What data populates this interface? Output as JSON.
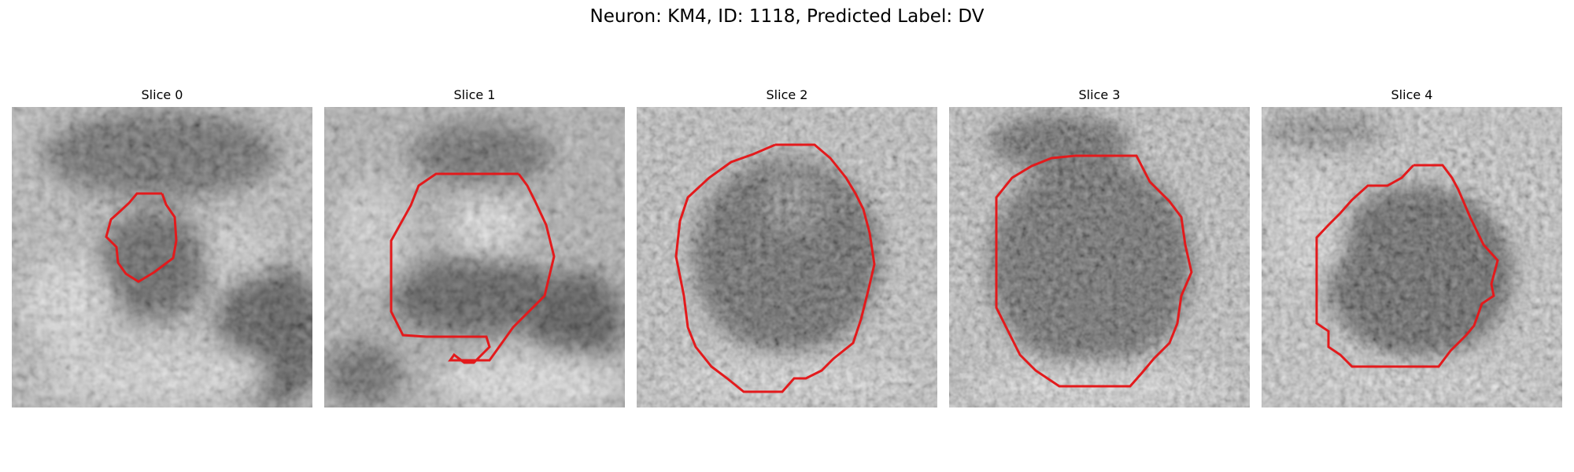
{
  "figure": {
    "title": "Neuron: KM4, ID: 1118, Predicted Label: DV"
  },
  "slices": [
    {
      "title": "Slice 0"
    },
    {
      "title": "Slice 1"
    },
    {
      "title": "Slice 2"
    },
    {
      "title": "Slice 3"
    },
    {
      "title": "Slice 4"
    }
  ],
  "colors": {
    "contour": "#e31a1c",
    "colormap": "gray"
  }
}
